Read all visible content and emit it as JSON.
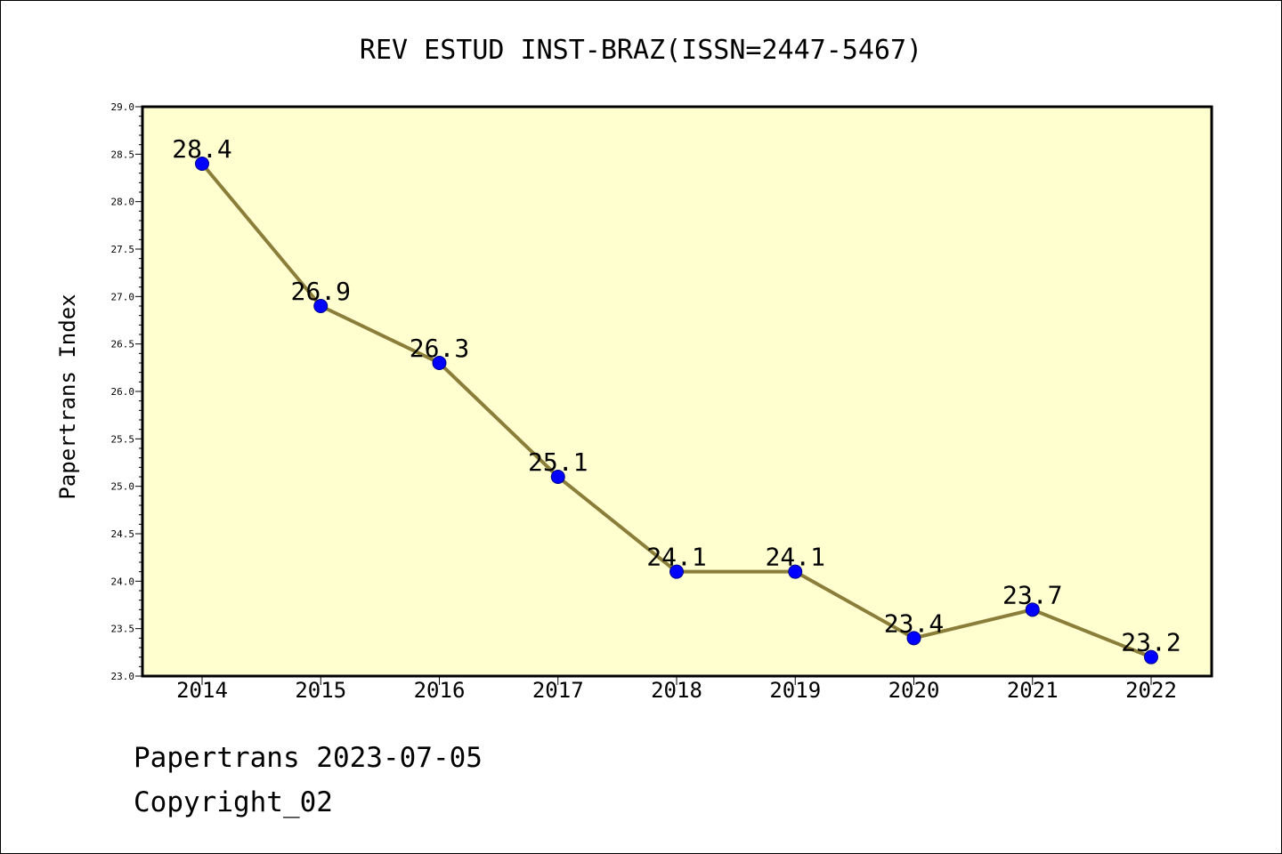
{
  "chart_data": {
    "type": "line",
    "title": "REV ESTUD INST-BRAZ(ISSN=2447-5467)",
    "xlabel": "",
    "ylabel": "Papertrans Index",
    "categories": [
      "2014",
      "2015",
      "2016",
      "2017",
      "2018",
      "2019",
      "2020",
      "2021",
      "2022"
    ],
    "values": [
      28.4,
      26.9,
      26.3,
      25.1,
      24.1,
      24.1,
      23.4,
      23.7,
      23.2
    ],
    "data_labels": [
      "28.4",
      "26.9",
      "26.3",
      "25.1",
      "24.1",
      "24.1",
      "23.4",
      "23.7",
      "23.2"
    ],
    "ylim": [
      23.0,
      29.0
    ],
    "yticks": [
      "23.0",
      "23.5",
      "24.0",
      "24.5",
      "25.0",
      "25.5",
      "26.0",
      "26.5",
      "27.0",
      "27.5",
      "28.0",
      "28.5",
      "29.0"
    ],
    "grid": false,
    "legend": "none",
    "colors": {
      "plot_background": "#FFFFD0",
      "line": "#8B7D3A",
      "marker_fill": "#0000FF",
      "marker_edge": "#00008B"
    }
  },
  "footer": {
    "line1": "Papertrans 2023-07-05",
    "line2": "Copyright_02"
  }
}
